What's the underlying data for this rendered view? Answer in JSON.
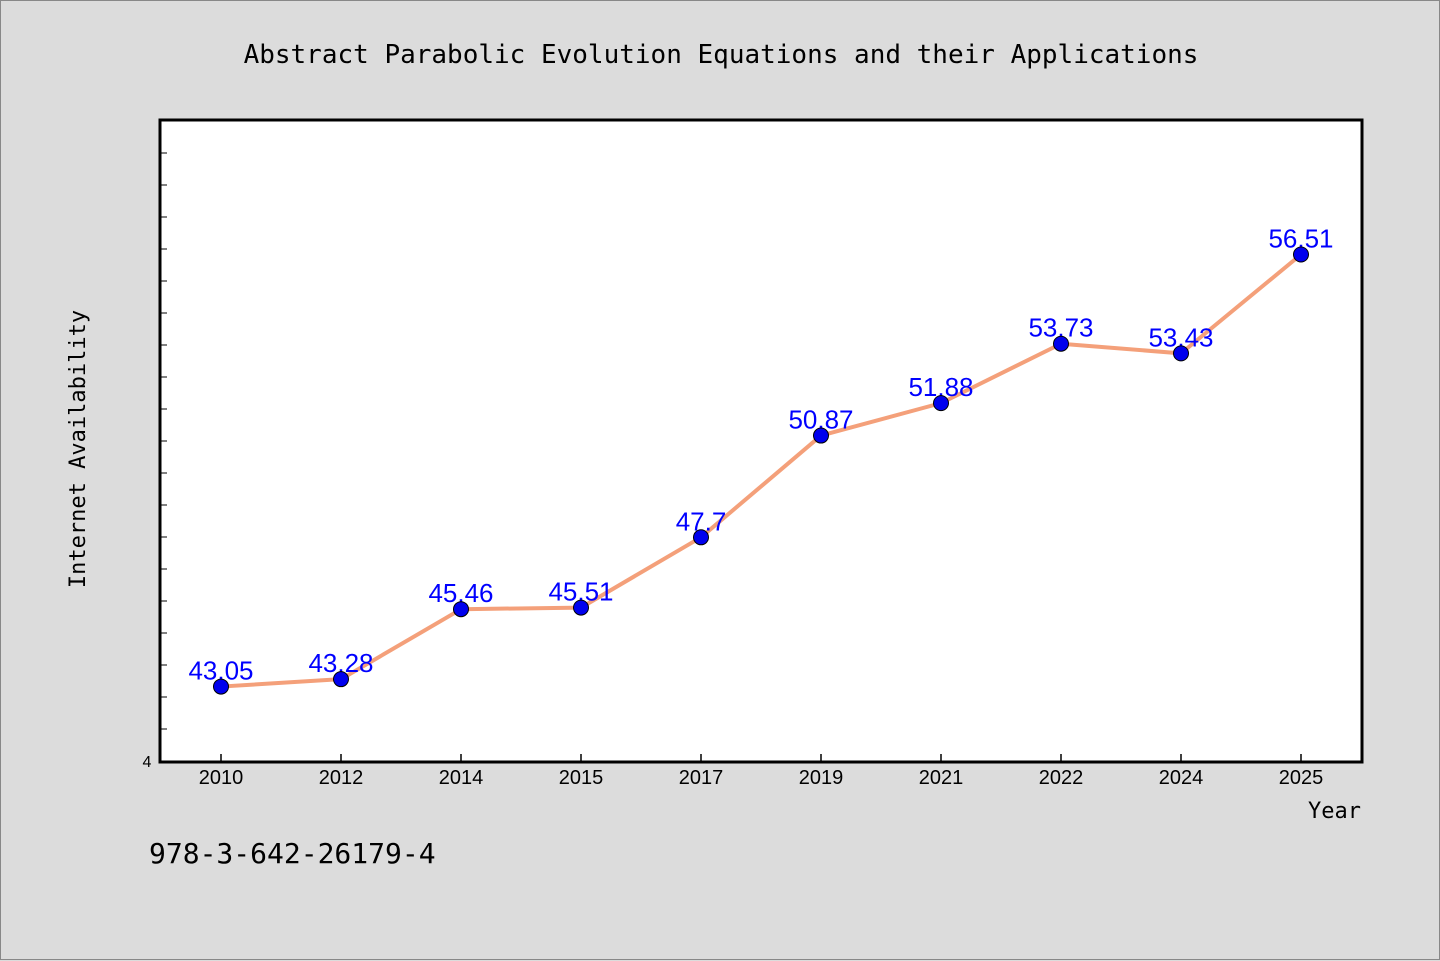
{
  "chart_data": {
    "type": "line",
    "title": "Abstract Parabolic Evolution Equations and their Applications",
    "xlabel": "Year",
    "ylabel": "Internet Availability",
    "y_tick_label": "4",
    "categories": [
      "2010",
      "2012",
      "2014",
      "2015",
      "2017",
      "2019",
      "2021",
      "2022",
      "2024",
      "2025"
    ],
    "series": [
      {
        "values": [
          43.05,
          43.28,
          45.46,
          45.51,
          47.7,
          50.87,
          51.88,
          53.73,
          53.43,
          56.51
        ],
        "data_labels": [
          "43.05",
          "43.28",
          "45.46",
          "45.51",
          "47.7",
          "50.87",
          "51.88",
          "53.73",
          "53.43",
          "56.51"
        ]
      }
    ],
    "ylim": [
      40.7,
      60.7
    ],
    "grid": false,
    "legend": "none",
    "colors": {
      "line": "#f4a07a",
      "marker": "#0000ee",
      "data_label": "#0000ff",
      "plot_bg": "#ffffff",
      "page_bg": "#dcdcdc"
    }
  },
  "footer": {
    "isbn": "978-3-642-26179-4"
  }
}
